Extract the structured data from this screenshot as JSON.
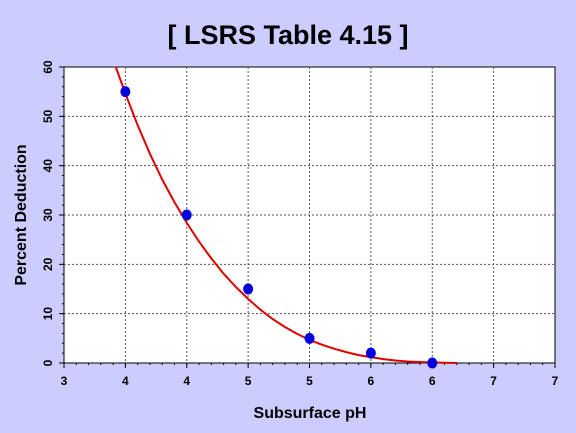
{
  "chart_data": {
    "type": "scatter",
    "title": "[ LSRS Table 4.15 ]",
    "xlabel": "Subsurface pH",
    "ylabel": "Percent Deduction",
    "xlim": [
      3,
      7
    ],
    "ylim": [
      0,
      60
    ],
    "x_ticks": [
      3,
      3.5,
      4,
      4.5,
      5,
      5.5,
      6,
      6.5,
      7
    ],
    "x_tick_labels": [
      "3",
      "4",
      "4",
      "5",
      "5",
      "6",
      "6",
      "7",
      "7"
    ],
    "y_ticks": [
      0,
      10,
      20,
      30,
      40,
      50,
      60
    ],
    "y_tick_labels": [
      "0",
      "10",
      "20",
      "30",
      "40",
      "50",
      "60"
    ],
    "grid": true,
    "series": [
      {
        "type": "scatter",
        "color": "#0000dd",
        "x": [
          3.5,
          4.0,
          4.5,
          5.0,
          5.5,
          6.0
        ],
        "y": [
          55,
          30,
          15,
          5,
          2,
          0
        ]
      },
      {
        "type": "line",
        "color": "#dd0000",
        "x": [
          3.42,
          3.5,
          3.6,
          3.7,
          3.8,
          3.9,
          4.0,
          4.1,
          4.2,
          4.3,
          4.4,
          4.5,
          4.6,
          4.7,
          4.8,
          4.9,
          5.0,
          5.1,
          5.2,
          5.3,
          5.4,
          5.5,
          5.6,
          5.7,
          5.8,
          5.9,
          6.0,
          6.1,
          6.2
        ],
        "y": [
          60.1,
          54.6,
          48.2,
          42.4,
          37.2,
          32.6,
          28.4,
          24.6,
          21.2,
          18.1,
          15.4,
          13.0,
          10.8,
          8.9,
          7.3,
          5.9,
          4.7,
          3.7,
          2.9,
          2.2,
          1.6,
          1.2,
          0.8,
          0.5,
          0.3,
          0.2,
          0.1,
          0.05,
          0.0
        ]
      }
    ]
  }
}
